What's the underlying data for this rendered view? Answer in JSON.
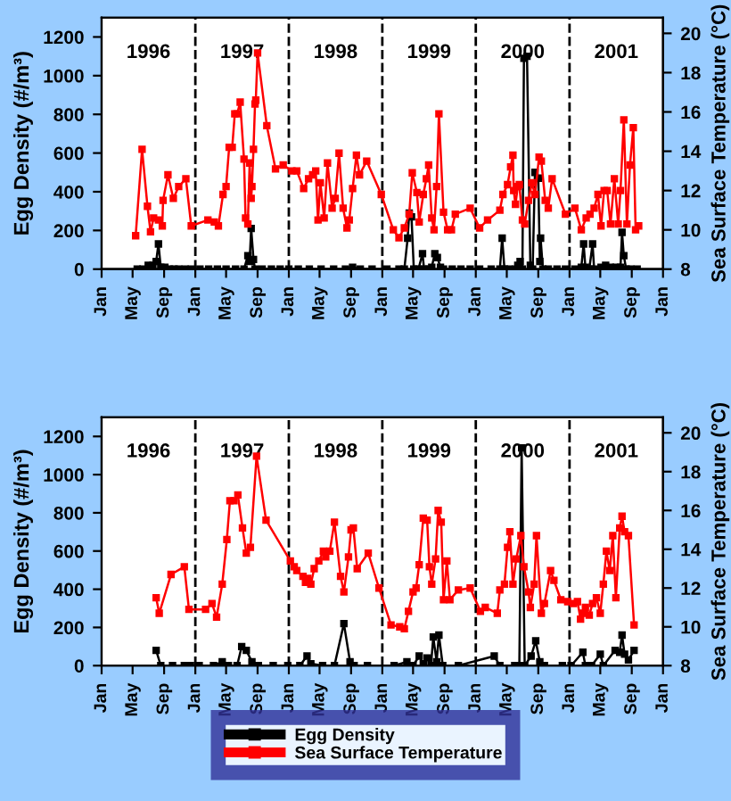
{
  "chart_data": [
    {
      "type": "line",
      "ylabel": "Egg Density (#/m³)",
      "y2label": "Sea Surface Temperature (°C)",
      "xlim": [
        "1996-01-01",
        "2002-01-01"
      ],
      "xticks": [
        {
          "value": "1996-01-01",
          "label": "Jan"
        },
        {
          "value": "1996-05-01",
          "label": "May"
        },
        {
          "value": "1996-09-01",
          "label": "Sep"
        },
        {
          "value": "1997-01-01",
          "label": "Jan"
        },
        {
          "value": "1997-05-01",
          "label": "May"
        },
        {
          "value": "1997-09-01",
          "label": "Sep"
        },
        {
          "value": "1998-01-01",
          "label": "Jan"
        },
        {
          "value": "1998-05-01",
          "label": "May"
        },
        {
          "value": "1998-09-01",
          "label": "Sep"
        },
        {
          "value": "1999-01-01",
          "label": "Jan"
        },
        {
          "value": "1999-05-01",
          "label": "May"
        },
        {
          "value": "1999-09-01",
          "label": "Sep"
        },
        {
          "value": "2000-01-01",
          "label": "Jan"
        },
        {
          "value": "2000-05-01",
          "label": "May"
        },
        {
          "value": "2000-09-01",
          "label": "Sep"
        },
        {
          "value": "2001-01-01",
          "label": "Jan"
        },
        {
          "value": "2001-05-01",
          "label": "May"
        },
        {
          "value": "2001-09-01",
          "label": "Sep"
        },
        {
          "value": "2002-01-01",
          "label": "Jan"
        }
      ],
      "ylim": [
        0,
        1300
      ],
      "yticks": [
        0,
        200,
        400,
        600,
        800,
        1000,
        1200
      ],
      "y2lim": [
        8,
        20.8
      ],
      "y2ticks": [
        8,
        10,
        12,
        14,
        16,
        18,
        20
      ],
      "marker": "square",
      "line_style": "solid",
      "grid": false,
      "legend": false,
      "ref_lines": [
        {
          "axis": "x",
          "value": "1997-01-01",
          "color": "#000000",
          "line_style": "dashed"
        },
        {
          "axis": "x",
          "value": "1998-01-01",
          "color": "#000000",
          "line_style": "dashed"
        },
        {
          "axis": "x",
          "value": "1999-01-01",
          "color": "#000000",
          "line_style": "dashed"
        },
        {
          "axis": "x",
          "value": "2000-01-01",
          "color": "#000000",
          "line_style": "dashed"
        },
        {
          "axis": "x",
          "value": "2001-01-01",
          "color": "#000000",
          "line_style": "dashed"
        }
      ],
      "annotations": [
        "1996",
        "1997",
        "1998",
        "1999",
        "2000",
        "2001"
      ],
      "series": [
        {
          "color": "#ff0000",
          "axis": "y2",
          "x": [
            "1996-05-13",
            "1996-06-07",
            "1996-06-28",
            "1996-07-10",
            "1996-07-22",
            "1996-08-10",
            "1996-08-25",
            "1996-08-28",
            "1996-09-16",
            "1996-10-07",
            "1996-10-28",
            "1996-11-25",
            "1996-12-16",
            "1997-02-19",
            "1997-03-16",
            "1997-04-01",
            "1997-04-19",
            "1997-05-01",
            "1997-05-13",
            "1997-05-25",
            "1997-06-04",
            "1997-06-13",
            "1997-06-25",
            "1997-07-10",
            "1997-07-16",
            "1997-07-25",
            "1997-08-01",
            "1997-08-07",
            "1997-08-10",
            "1997-08-16",
            "1997-08-22",
            "1997-08-25",
            "1997-09-01",
            "1997-10-07",
            "1997-11-10",
            "1997-12-10",
            "1998-01-13",
            "1998-02-01",
            "1998-02-28",
            "1998-03-19",
            "1998-04-04",
            "1998-04-16",
            "1998-04-25",
            "1998-05-04",
            "1998-05-19",
            "1998-06-01",
            "1998-06-19",
            "1998-07-01",
            "1998-07-16",
            "1998-08-01",
            "1998-08-16",
            "1998-08-25",
            "1998-09-07",
            "1998-09-22",
            "1998-10-04",
            "1998-11-01",
            "1998-12-28",
            "1999-02-13",
            "1999-03-07",
            "1999-03-28",
            "1999-04-16",
            "1999-04-28",
            "1999-05-16",
            "1999-05-25",
            "1999-06-10",
            "1999-06-22",
            "1999-07-01",
            "1999-07-13",
            "1999-07-22",
            "1999-08-01",
            "1999-08-10",
            "1999-08-28",
            "1999-09-13",
            "1999-09-28",
            "1999-10-13",
            "1999-12-10",
            "2000-01-16",
            "2000-02-16",
            "2000-04-04",
            "2000-04-16",
            "2000-05-04",
            "2000-05-16",
            "2000-05-25",
            "2000-05-28",
            "2000-06-04",
            "2000-06-13",
            "2000-06-19",
            "2000-07-01",
            "2000-07-10",
            "2000-07-25",
            "2000-08-07",
            "2000-08-19",
            "2000-09-04",
            "2000-09-13",
            "2000-09-28",
            "2000-10-10",
            "2000-10-25",
            "2000-12-16",
            "2001-01-22",
            "2001-02-16",
            "2001-03-07",
            "2001-03-22",
            "2001-04-07",
            "2001-04-22",
            "2001-05-04",
            "2001-05-16",
            "2001-05-28",
            "2001-06-10",
            "2001-06-25",
            "2001-07-10",
            "2001-07-19",
            "2001-08-01",
            "2001-08-13",
            "2001-08-25",
            "2001-09-07",
            "2001-09-16",
            "2001-09-28"
          ],
          "values": [
            9.7,
            14.1,
            11.2,
            9.9,
            10.6,
            10.5,
            10.2,
            11.5,
            12.8,
            11.6,
            12.2,
            12.6,
            10.2,
            10.5,
            10.4,
            10.2,
            11.8,
            12.2,
            14.2,
            14.2,
            15.9,
            15.9,
            16.5,
            13.6,
            10.6,
            10.3,
            13.4,
            11.6,
            12.2,
            14.1,
            16.4,
            16.6,
            19,
            15.3,
            13.1,
            13.3,
            13,
            13,
            12.1,
            12.6,
            12.8,
            13,
            10.5,
            12.4,
            10.6,
            13.4,
            11.1,
            11.6,
            13.9,
            11.1,
            10.1,
            10.5,
            12.1,
            13.8,
            12.8,
            13.5,
            11.8,
            10,
            9.6,
            10.1,
            10.8,
            12.9,
            11.9,
            10.4,
            11.8,
            12.6,
            13.3,
            10.6,
            10,
            12.2,
            15.9,
            10.9,
            10,
            10,
            10.8,
            11.1,
            10.1,
            10.5,
            11,
            11.8,
            12.3,
            13.2,
            13.8,
            12,
            11.3,
            12.2,
            12.3,
            10.5,
            10.3,
            11.5,
            12.4,
            11.8,
            13.7,
            13.5,
            11.5,
            11.1,
            12.6,
            10.8,
            11.1,
            10,
            10.6,
            10.8,
            11.1,
            11.8,
            10.2,
            12,
            12,
            10.3,
            12.6,
            10.3,
            12,
            15.6,
            10.3,
            13.3,
            15.2,
            10,
            10.2
          ]
        },
        {
          "color": "#000000",
          "axis": "y",
          "x": [
            "1996-05-19",
            "1996-06-10",
            "1996-07-01",
            "1996-07-19",
            "1996-08-01",
            "1996-08-10",
            "1996-08-19",
            "1996-09-04",
            "1996-09-22",
            "1996-10-10",
            "1996-10-28",
            "1996-11-22",
            "1996-12-16",
            "1997-01-19",
            "1997-02-22",
            "1997-03-28",
            "1997-05-01",
            "1997-06-07",
            "1997-07-10",
            "1997-07-25",
            "1997-08-01",
            "1997-08-07",
            "1997-08-16",
            "1997-08-22",
            "1997-09-19",
            "1997-10-25",
            "1997-11-28",
            "1998-01-01",
            "1998-02-07",
            "1998-03-22",
            "1998-05-07",
            "1998-06-25",
            "1998-08-10",
            "1998-09-07",
            "1998-10-07",
            "1998-11-22",
            "1999-01-19",
            "1999-03-07",
            "1999-03-28",
            "1999-04-10",
            "1999-04-16",
            "1999-04-25",
            "1999-05-04",
            "1999-05-22",
            "1999-06-07",
            "1999-06-13",
            "1999-07-01",
            "1999-07-13",
            "1999-07-25",
            "1999-08-04",
            "1999-08-16",
            "1999-08-28",
            "1999-10-01",
            "1999-11-04",
            "1999-12-10",
            "2000-01-16",
            "2000-03-01",
            "2000-04-04",
            "2000-04-13",
            "2000-04-22",
            "2000-05-10",
            "2000-06-04",
            "2000-06-13",
            "2000-06-22",
            "2000-07-01",
            "2000-07-07",
            "2000-07-19",
            "2000-08-01",
            "2000-08-10",
            "2000-08-19",
            "2000-09-01",
            "2000-09-07",
            "2000-09-10",
            "2000-09-19",
            "2000-10-10",
            "2000-11-13",
            "2000-12-16",
            "2001-01-22",
            "2001-02-16",
            "2001-02-25",
            "2001-03-04",
            "2001-03-19",
            "2001-04-01",
            "2001-04-07",
            "2001-05-04",
            "2001-05-22",
            "2001-06-10",
            "2001-07-01",
            "2001-07-19",
            "2001-07-25",
            "2001-08-01",
            "2001-08-10",
            "2001-08-28",
            "2001-09-22"
          ],
          "values": [
            0,
            0,
            20,
            20,
            40,
            130,
            10,
            10,
            0,
            0,
            0,
            0,
            0,
            0,
            0,
            0,
            0,
            0,
            0,
            70,
            40,
            210,
            50,
            0,
            0,
            0,
            0,
            0,
            0,
            0,
            0,
            0,
            0,
            10,
            0,
            0,
            0,
            0,
            0,
            160,
            290,
            270,
            0,
            0,
            80,
            0,
            0,
            10,
            80,
            60,
            10,
            0,
            0,
            0,
            0,
            0,
            0,
            0,
            160,
            0,
            0,
            0,
            20,
            40,
            0,
            1090,
            1100,
            20,
            0,
            500,
            470,
            40,
            160,
            0,
            0,
            0,
            0,
            0,
            10,
            130,
            10,
            0,
            130,
            0,
            10,
            20,
            10,
            10,
            10,
            190,
            70,
            0,
            0,
            0
          ]
        }
      ]
    },
    {
      "type": "line",
      "ylabel": "Egg Density (#/m³)",
      "y2label": "Sea Surface Temperature (°C)",
      "xlim": [
        "1996-01-01",
        "2002-01-01"
      ],
      "xticks": [
        {
          "value": "1996-01-01",
          "label": "Jan"
        },
        {
          "value": "1996-05-01",
          "label": "May"
        },
        {
          "value": "1996-09-01",
          "label": "Sep"
        },
        {
          "value": "1997-01-01",
          "label": "Jan"
        },
        {
          "value": "1997-05-01",
          "label": "May"
        },
        {
          "value": "1997-09-01",
          "label": "Sep"
        },
        {
          "value": "1998-01-01",
          "label": "Jan"
        },
        {
          "value": "1998-05-01",
          "label": "May"
        },
        {
          "value": "1998-09-01",
          "label": "Sep"
        },
        {
          "value": "1999-01-01",
          "label": "Jan"
        },
        {
          "value": "1999-05-01",
          "label": "May"
        },
        {
          "value": "1999-09-01",
          "label": "Sep"
        },
        {
          "value": "2000-01-01",
          "label": "Jan"
        },
        {
          "value": "2000-05-01",
          "label": "May"
        },
        {
          "value": "2000-09-01",
          "label": "Sep"
        },
        {
          "value": "2001-01-01",
          "label": "Jan"
        },
        {
          "value": "2001-05-01",
          "label": "May"
        },
        {
          "value": "2001-09-01",
          "label": "Sep"
        },
        {
          "value": "2002-01-01",
          "label": "Jan"
        }
      ],
      "ylim": [
        0,
        1300
      ],
      "yticks": [
        0,
        200,
        400,
        600,
        800,
        1000,
        1200
      ],
      "y2lim": [
        8,
        20.8
      ],
      "y2ticks": [
        8,
        10,
        12,
        14,
        16,
        18,
        20
      ],
      "marker": "square",
      "line_style": "solid",
      "grid": false,
      "legend": "bottom",
      "ref_lines": [
        {
          "axis": "x",
          "value": "1997-01-01",
          "color": "#000000",
          "line_style": "dashed"
        },
        {
          "axis": "x",
          "value": "1998-01-01",
          "color": "#000000",
          "line_style": "dashed"
        },
        {
          "axis": "x",
          "value": "1999-01-01",
          "color": "#000000",
          "line_style": "dashed"
        },
        {
          "axis": "x",
          "value": "2000-01-01",
          "color": "#000000",
          "line_style": "dashed"
        },
        {
          "axis": "x",
          "value": "2001-01-01",
          "color": "#000000",
          "line_style": "dashed"
        }
      ],
      "annotations": [
        "1996",
        "1997",
        "1998",
        "1999",
        "2000",
        "2001"
      ],
      "series": [
        {
          "name": "Egg Density",
          "color": "#000000",
          "axis": "y",
          "x": [
            "1996-08-01",
            "1996-08-19",
            "1996-10-04",
            "1996-11-19",
            "1996-12-13",
            "1997-01-16",
            "1997-03-13",
            "1997-04-16",
            "1997-05-10",
            "1997-06-13",
            "1997-07-01",
            "1997-07-19",
            "1997-08-10",
            "1997-09-04",
            "1997-11-01",
            "1997-12-28",
            "1998-02-13",
            "1998-03-13",
            "1998-03-28",
            "1998-05-13",
            "1998-06-28",
            "1998-08-04",
            "1998-08-28",
            "1998-09-13",
            "1998-11-04",
            "1999-02-16",
            "1999-04-07",
            "1999-05-01",
            "1999-05-25",
            "1999-06-10",
            "1999-06-25",
            "1999-07-10",
            "1999-07-19",
            "1999-08-01",
            "1999-08-10",
            "1999-08-25",
            "1999-10-25",
            "2000-03-13",
            "2000-04-04",
            "2000-06-01",
            "2000-06-19",
            "2000-06-28",
            "2000-07-10",
            "2000-08-04",
            "2000-08-22",
            "2000-09-07",
            "2000-09-25",
            "2000-12-04",
            "2001-01-07",
            "2001-02-22",
            "2001-03-04",
            "2001-03-28",
            "2001-05-01",
            "2001-05-13",
            "2001-06-28",
            "2001-07-16",
            "2001-07-25",
            "2001-08-04",
            "2001-08-19",
            "2001-09-10"
          ],
          "values": [
            80,
            0,
            0,
            0,
            0,
            0,
            0,
            20,
            0,
            0,
            100,
            80,
            20,
            0,
            0,
            0,
            0,
            50,
            10,
            0,
            0,
            220,
            20,
            0,
            0,
            0,
            20,
            0,
            50,
            10,
            40,
            0,
            150,
            20,
            160,
            0,
            0,
            50,
            0,
            0,
            0,
            1140,
            0,
            50,
            130,
            20,
            0,
            0,
            0,
            70,
            0,
            0,
            60,
            0,
            80,
            70,
            160,
            60,
            30,
            80
          ]
        },
        {
          "name": "Sea Surface Temperature",
          "color": "#ff0000",
          "axis": "y2",
          "x": [
            "1996-08-01",
            "1996-08-13",
            "1996-09-28",
            "1996-11-19",
            "1996-12-07",
            "1997-02-10",
            "1997-03-07",
            "1997-03-25",
            "1997-04-16",
            "1997-05-04",
            "1997-05-16",
            "1997-06-01",
            "1997-06-16",
            "1997-07-04",
            "1997-07-19",
            "1997-08-04",
            "1997-08-28",
            "1997-10-04",
            "1998-01-07",
            "1998-01-22",
            "1998-02-01",
            "1998-02-25",
            "1998-03-07",
            "1998-03-16",
            "1998-03-28",
            "1998-04-10",
            "1998-04-28",
            "1998-05-16",
            "1998-05-25",
            "1998-06-10",
            "1998-06-28",
            "1998-07-22",
            "1998-08-04",
            "1998-08-22",
            "1998-09-01",
            "1998-09-10",
            "1998-09-25",
            "1998-11-07",
            "1998-12-19",
            "1999-02-04",
            "1999-03-10",
            "1999-03-28",
            "1999-04-13",
            "1999-05-01",
            "1999-05-13",
            "1999-05-25",
            "1999-06-10",
            "1999-06-25",
            "1999-07-04",
            "1999-07-13",
            "1999-07-28",
            "1999-08-07",
            "1999-08-19",
            "1999-08-28",
            "1999-09-10",
            "1999-09-22",
            "1999-10-25",
            "1999-12-10",
            "2000-01-19",
            "2000-02-07",
            "2000-03-25",
            "2000-04-04",
            "2000-04-22",
            "2000-05-04",
            "2000-05-13",
            "2000-05-25",
            "2000-06-07",
            "2000-06-25",
            "2000-07-07",
            "2000-07-25",
            "2000-08-01",
            "2000-08-16",
            "2000-08-25",
            "2000-09-13",
            "2000-09-25",
            "2000-10-19",
            "2000-11-01",
            "2000-11-28",
            "2000-12-25",
            "2001-01-16",
            "2001-02-01",
            "2001-02-13",
            "2001-02-22",
            "2001-03-04",
            "2001-03-19",
            "2001-04-01",
            "2001-04-16",
            "2001-05-01",
            "2001-05-13",
            "2001-05-25",
            "2001-06-07",
            "2001-06-19",
            "2001-07-01",
            "2001-07-16",
            "2001-07-25",
            "2001-08-04",
            "2001-08-19",
            "2001-09-10"
          ],
          "values": [
            11.5,
            10.7,
            12.7,
            13.1,
            10.9,
            10.9,
            11.2,
            10.5,
            12.2,
            14.5,
            16.5,
            16.5,
            16.8,
            15.1,
            13.8,
            14.1,
            18.8,
            15.5,
            13.4,
            13.1,
            12.9,
            12.6,
            12.3,
            12.5,
            12.2,
            13,
            13.4,
            13.9,
            13.6,
            13.9,
            15.4,
            12.6,
            11.8,
            13.6,
            15,
            15.1,
            13,
            13.8,
            12,
            10.1,
            10,
            9.9,
            10.8,
            11.8,
            12,
            13.2,
            15.6,
            15.5,
            13.1,
            12.2,
            13.5,
            16,
            15.4,
            11.4,
            13.4,
            11.4,
            11.9,
            12,
            10.8,
            11,
            10.7,
            11.9,
            12.2,
            14.1,
            14.9,
            12.2,
            13.5,
            14.7,
            13.1,
            11.8,
            11,
            12.2,
            14.7,
            10.7,
            11.2,
            12.9,
            12.4,
            11.4,
            11.3,
            11.2,
            11.3,
            10.4,
            10.7,
            11,
            10.6,
            11.2,
            11.5,
            10.7,
            12.2,
            13.9,
            12.9,
            14.7,
            11.5,
            15.1,
            15.7,
            14.9,
            14.7,
            10.1
          ]
        }
      ]
    }
  ]
}
